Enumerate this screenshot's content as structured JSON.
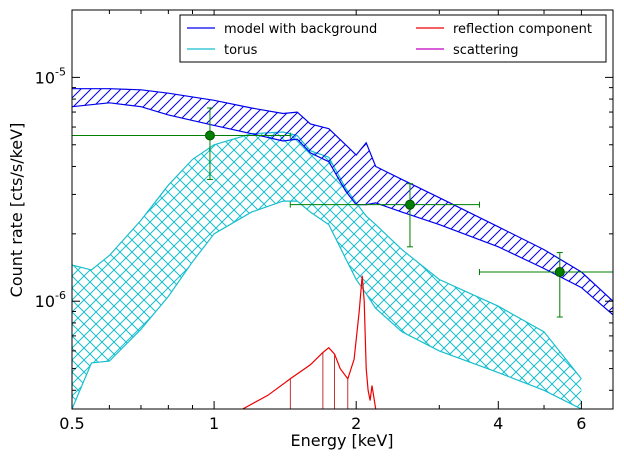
{
  "chart_data": {
    "type": "line",
    "xlabel": "Energy [keV]",
    "ylabel": "Count rate [cts/s/keV]",
    "x_scale": "log",
    "y_scale": "log",
    "xlim": [
      0.5,
      7.0
    ],
    "ylim": [
      3.3e-07,
      2e-05
    ],
    "grid": false,
    "legend_position": "top-right",
    "x_ticks": [
      {
        "value": 0.5,
        "label": "0.5"
      },
      {
        "value": 1,
        "label": "1"
      },
      {
        "value": 2,
        "label": "2"
      },
      {
        "value": 4,
        "label": "4"
      },
      {
        "value": 6,
        "label": "6"
      }
    ],
    "y_ticks": [
      {
        "value": 1e-06,
        "base": "10",
        "exp": "-6"
      },
      {
        "value": 1e-05,
        "base": "10",
        "exp": "-5"
      }
    ],
    "series": [
      {
        "name": "model with background",
        "color": "#0000ee",
        "style": "hatched band (diagonal)",
        "x": [
          0.5,
          0.6,
          0.7,
          0.8,
          1.0,
          1.2,
          1.4,
          1.5,
          1.6,
          1.75,
          1.9,
          2.0,
          2.1,
          2.2,
          2.5,
          3.0,
          4.0,
          5.0,
          6.0,
          7.0
        ],
        "upper": [
          8.9e-06,
          8.9e-06,
          8.8e-06,
          8.5e-06,
          7.9e-06,
          7.3e-06,
          6.9e-06,
          7e-06,
          6.2e-06,
          5.9e-06,
          5e-06,
          4.5e-06,
          5.1e-06,
          4e-06,
          3.5e-06,
          2.9e-06,
          2.15e-06,
          1.7e-06,
          1.35e-06,
          1e-06
        ],
        "lower": [
          7.4e-06,
          7.7e-06,
          7.4e-06,
          6.8e-06,
          6.1e-06,
          5.6e-06,
          5.2e-06,
          5.3e-06,
          4.6e-06,
          4.2e-06,
          3.1e-06,
          2.7e-06,
          2.7e-06,
          2.75e-06,
          2.5e-06,
          2.2e-06,
          1.75e-06,
          1.4e-06,
          1.15e-06,
          8.7e-07
        ]
      },
      {
        "name": "torus",
        "color": "#17becf",
        "style": "cross-hatched band",
        "x": [
          0.5,
          0.55,
          0.6,
          0.7,
          0.8,
          0.9,
          1.0,
          1.2,
          1.4,
          1.5,
          1.6,
          1.75,
          1.9,
          2.0,
          2.1,
          2.2,
          2.5,
          3.0,
          4.0,
          5.0,
          6.0
        ],
        "upper": [
          1.45e-06,
          1.38e-06,
          1.6e-06,
          2.3e-06,
          3.3e-06,
          4.3e-06,
          5e-06,
          5.6e-06,
          5.7e-06,
          5.5e-06,
          4.7e-06,
          4.4e-06,
          3.2e-06,
          2.75e-06,
          2.4e-06,
          2.2e-06,
          1.7e-06,
          1.25e-06,
          9.5e-07,
          7.3e-07,
          4.5e-07
        ],
        "lower": [
          3.3e-07,
          5.3e-07,
          5.4e-07,
          7.5e-07,
          1.05e-06,
          1.5e-06,
          2e-06,
          2.5e-06,
          2.8e-06,
          2.8e-06,
          2.5e-06,
          2.2e-06,
          1.55e-06,
          1.25e-06,
          1.08e-06,
          9.3e-07,
          7.3e-07,
          6e-07,
          4.8e-07,
          4e-07,
          3.3e-07
        ]
      },
      {
        "name": "reflection component",
        "color": "#ee0000",
        "style": "line",
        "x": [
          1.15,
          1.3,
          1.45,
          1.6,
          1.7,
          1.75,
          1.8,
          1.85,
          1.92,
          1.98,
          2.03,
          2.06,
          2.08,
          2.1,
          2.12,
          2.14,
          2.16,
          2.2
        ],
        "values": [
          3.3e-07,
          3.8e-07,
          4.5e-07,
          5.2e-07,
          5.9e-07,
          6.2e-07,
          5.8e-07,
          5e-07,
          4.5e-07,
          5.5e-07,
          9e-07,
          1.3e-06,
          1e-06,
          5e-07,
          4e-07,
          3.6e-07,
          4.2e-07,
          3.3e-07
        ]
      },
      {
        "name": "scattering",
        "color": "#bf00bf",
        "style": "line",
        "x": [],
        "values": []
      }
    ],
    "data_points": {
      "color": "#008000",
      "points": [
        {
          "x": 0.98,
          "y": 5.5e-06,
          "xerr": [
            0.5,
            1.45
          ],
          "yerr": [
            3.5e-06,
            7.3e-06
          ]
        },
        {
          "x": 2.6,
          "y": 2.7e-06,
          "xerr": [
            1.45,
            3.65
          ],
          "yerr": [
            1.75e-06,
            3.35e-06
          ]
        },
        {
          "x": 5.4,
          "y": 1.35e-06,
          "xerr": [
            3.65,
            7.0
          ],
          "yerr": [
            8.5e-07,
            1.65e-06
          ]
        }
      ]
    }
  }
}
